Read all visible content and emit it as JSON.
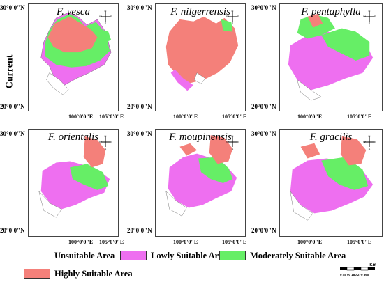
{
  "row_label": "Current",
  "panels": [
    {
      "title": "F. vesca"
    },
    {
      "title": "F. nilgerrensis"
    },
    {
      "title": "F. pentaphylla"
    },
    {
      "title": "F. orientalis"
    },
    {
      "title": "F. moupinensis"
    },
    {
      "title": "F. gracilis"
    }
  ],
  "axes": {
    "lat_top": "30°0'0\"N",
    "lat_bottom": "20°0'0\"N",
    "lon_left": "100°0'0\"E",
    "lon_right": "105°0'0\"E"
  },
  "compass": {
    "n": "N",
    "s": "S",
    "e": "E",
    "w": "W"
  },
  "legend": {
    "unsuitable": {
      "label": "Unsuitable Area",
      "color": "#ffffff"
    },
    "lowly": {
      "label": "Lowly Suitable Area",
      "color": "#ee6ff0"
    },
    "moderately": {
      "label": "Moderately Suitable Area",
      "color": "#66ee66"
    },
    "highly": {
      "label": "Highly Suitable Area",
      "color": "#f4807a"
    }
  },
  "scale": {
    "unit": "Km",
    "ticks": "0 45 90 180 270 360"
  }
}
